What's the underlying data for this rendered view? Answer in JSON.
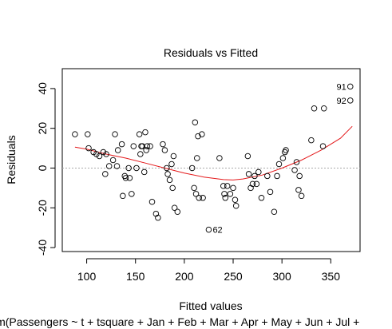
{
  "chart_data": {
    "type": "scatter",
    "title": "Residuals vs Fitted",
    "xlabel": "Fitted values",
    "ylabel": "Residuals",
    "model_caption": "lm(Passengers ~ t + tsquare + Jan + Feb + Mar + Apr + May + Jun + Jul +",
    "xlim": [
      75,
      380
    ],
    "ylim": [
      -42,
      50
    ],
    "x_ticks": [
      100,
      150,
      200,
      250,
      300,
      350
    ],
    "y_ticks": [
      -40,
      -20,
      0,
      20,
      40
    ],
    "grid": false,
    "reference_line_y": 0,
    "points": [
      [
        88,
        17
      ],
      [
        101,
        17
      ],
      [
        102,
        10
      ],
      [
        107,
        8
      ],
      [
        110,
        7
      ],
      [
        113,
        6
      ],
      [
        117,
        8
      ],
      [
        119,
        -3
      ],
      [
        120,
        7
      ],
      [
        123,
        1
      ],
      [
        127,
        4
      ],
      [
        129,
        17
      ],
      [
        131,
        1
      ],
      [
        132,
        9
      ],
      [
        136,
        12
      ],
      [
        137,
        -14
      ],
      [
        139,
        -4
      ],
      [
        140,
        -5
      ],
      [
        143,
        0
      ],
      [
        144,
        -5
      ],
      [
        146,
        -13
      ],
      [
        148,
        11
      ],
      [
        151,
        0
      ],
      [
        154,
        17
      ],
      [
        155,
        7
      ],
      [
        156,
        11
      ],
      [
        157,
        11
      ],
      [
        159,
        -2
      ],
      [
        160,
        18
      ],
      [
        161,
        9
      ],
      [
        162,
        11
      ],
      [
        165,
        11
      ],
      [
        167,
        -17
      ],
      [
        171,
        -23
      ],
      [
        173,
        -25
      ],
      [
        178,
        12
      ],
      [
        180,
        9
      ],
      [
        182,
        0
      ],
      [
        183,
        -3
      ],
      [
        185,
        -6
      ],
      [
        187,
        2
      ],
      [
        188,
        -10
      ],
      [
        189,
        6
      ],
      [
        190,
        -20
      ],
      [
        193,
        -22
      ],
      [
        208,
        0
      ],
      [
        210,
        -10
      ],
      [
        211,
        23
      ],
      [
        212,
        -13
      ],
      [
        213,
        5
      ],
      [
        214,
        16
      ],
      [
        215,
        -15
      ],
      [
        218,
        17
      ],
      [
        219,
        -15
      ],
      [
        225,
        -31
      ],
      [
        236,
        5
      ],
      [
        240,
        -9
      ],
      [
        241,
        -13
      ],
      [
        242,
        -15
      ],
      [
        244,
        -9
      ],
      [
        247,
        -13
      ],
      [
        250,
        -10
      ],
      [
        252,
        -16
      ],
      [
        253,
        -19
      ],
      [
        265,
        6
      ],
      [
        266,
        -3
      ],
      [
        268,
        -10
      ],
      [
        270,
        -8
      ],
      [
        272,
        -4
      ],
      [
        274,
        -8
      ],
      [
        276,
        -2
      ],
      [
        279,
        -15
      ],
      [
        285,
        -4
      ],
      [
        288,
        -12
      ],
      [
        292,
        -22
      ],
      [
        295,
        -4
      ],
      [
        297,
        2
      ],
      [
        301,
        5
      ],
      [
        303,
        8
      ],
      [
        304,
        9
      ],
      [
        313,
        -1
      ],
      [
        315,
        3
      ],
      [
        317,
        -11
      ],
      [
        318,
        -4
      ],
      [
        320,
        -14
      ],
      [
        330,
        14
      ],
      [
        333,
        30
      ],
      [
        342,
        11
      ],
      [
        343,
        30
      ],
      [
        370,
        41
      ],
      [
        370,
        34
      ]
    ],
    "smoother": {
      "color": "#e41a1c",
      "x": [
        88,
        100,
        120,
        140,
        160,
        180,
        200,
        220,
        240,
        250,
        260,
        280,
        300,
        320,
        340,
        360,
        372
      ],
      "y": [
        10.5,
        9.5,
        7,
        5,
        2.5,
        0,
        -2.5,
        -4.5,
        -5.8,
        -6,
        -5.5,
        -3.5,
        0,
        4,
        9,
        15,
        21
      ]
    },
    "labels": [
      {
        "text": "91",
        "point_index": 89,
        "side": "left"
      },
      {
        "text": "92",
        "point_index": 90,
        "side": "left"
      },
      {
        "text": "62",
        "point_index": 54,
        "side": "right"
      }
    ]
  }
}
